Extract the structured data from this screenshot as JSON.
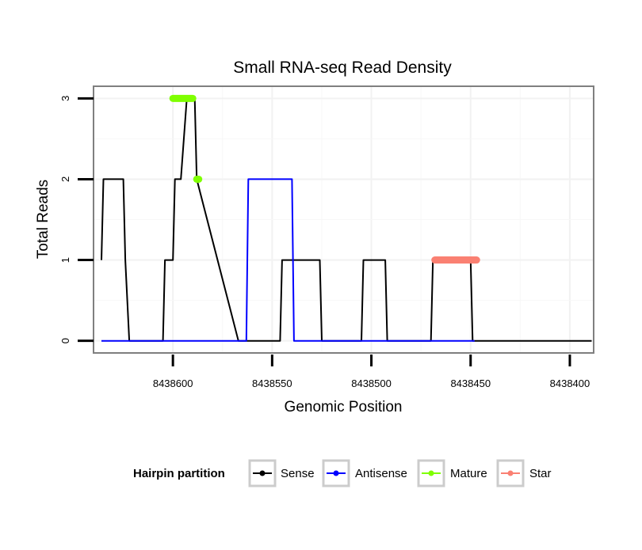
{
  "chart_data": {
    "type": "line",
    "title": "Small RNA-seq Read Density",
    "xlabel": "Genomic Position",
    "ylabel": "Total Reads",
    "x_reversed": true,
    "xlim": [
      8438640,
      8438388
    ],
    "ylim": [
      -0.15,
      3.15
    ],
    "x_ticks": [
      8438600,
      8438550,
      8438500,
      8438450,
      8438400
    ],
    "x_tick_labels": [
      "8438600",
      "8438550",
      "8438500",
      "8438450",
      "8438400"
    ],
    "y_ticks": [
      0,
      1,
      2,
      3
    ],
    "y_tick_labels": [
      "0",
      "1",
      "2",
      "3"
    ],
    "grid": true,
    "legend": {
      "title": "Hairpin partition",
      "position": "bottom",
      "entries": [
        {
          "name": "Sense",
          "color": "#000000"
        },
        {
          "name": "Antisense",
          "color": "#0000ff"
        },
        {
          "name": "Mature",
          "color": "#7fff00"
        },
        {
          "name": "Star",
          "color": "#fa8072"
        }
      ]
    },
    "series": [
      {
        "name": "Sense",
        "color": "#000000",
        "style": "line",
        "x": [
          8438636,
          8438635,
          8438634,
          8438630,
          8438626,
          8438625,
          8438624,
          8438622,
          8438621,
          8438606,
          8438605,
          8438604,
          8438601,
          8438600,
          8438599,
          8438597,
          8438596,
          8438593,
          8438592,
          8438591,
          8438590,
          8438589,
          8438588,
          8438567,
          8438566,
          8438564,
          8438546,
          8438545,
          8438543,
          8438526,
          8438525,
          8438523,
          8438505,
          8438504,
          8438502,
          8438493,
          8438492,
          8438471,
          8438470,
          8438469,
          8438468,
          8438450,
          8438449,
          8438448,
          8438447,
          8438389
        ],
        "y": [
          1,
          2,
          2,
          2,
          2,
          2,
          1,
          0,
          0,
          0,
          0,
          1,
          1,
          1,
          2,
          2,
          2,
          3,
          3,
          3,
          3,
          3,
          2,
          0,
          0,
          0,
          0,
          1,
          1,
          1,
          0,
          0,
          0,
          1,
          1,
          1,
          0,
          0,
          0,
          1,
          1,
          1,
          0,
          0,
          0,
          0
        ]
      },
      {
        "name": "Antisense",
        "color": "#0000ff",
        "style": "line",
        "x": [
          8438636,
          8438568,
          8438563,
          8438562,
          8438561,
          8438545,
          8438544,
          8438540,
          8438539,
          8438503,
          8438502,
          8438448
        ],
        "y": [
          0,
          0,
          0,
          2,
          2,
          2,
          2,
          2,
          0,
          0,
          0,
          0
        ]
      },
      {
        "name": "Mature",
        "color": "#7fff00",
        "style": "segments",
        "x": [
          8438600,
          8438590,
          8438588,
          8438587
        ],
        "y": [
          3,
          3,
          2,
          2
        ]
      },
      {
        "name": "Star",
        "color": "#fa8072",
        "style": "segments",
        "x": [
          8438468,
          8438447
        ],
        "y": [
          1,
          1
        ]
      }
    ]
  }
}
